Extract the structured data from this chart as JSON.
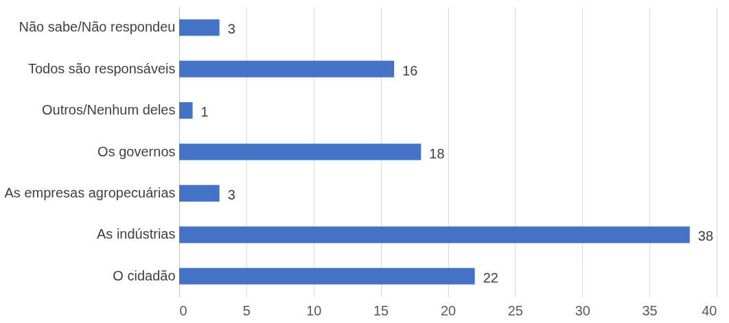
{
  "chart_data": {
    "type": "bar",
    "orientation": "horizontal",
    "categories": [
      "Não sabe/Não respondeu",
      "Todos são responsáveis",
      "Outros/Nenhum deles",
      "Os governos",
      "As empresas agropecuárias",
      "As indústrias",
      "O cidadão"
    ],
    "values": [
      3,
      16,
      1,
      18,
      3,
      38,
      22
    ],
    "color": "#4472c4",
    "xlim": [
      0,
      40
    ],
    "xticks": [
      0,
      5,
      10,
      15,
      20,
      25,
      30,
      35,
      40
    ],
    "grid": "x",
    "data_labels": true
  }
}
